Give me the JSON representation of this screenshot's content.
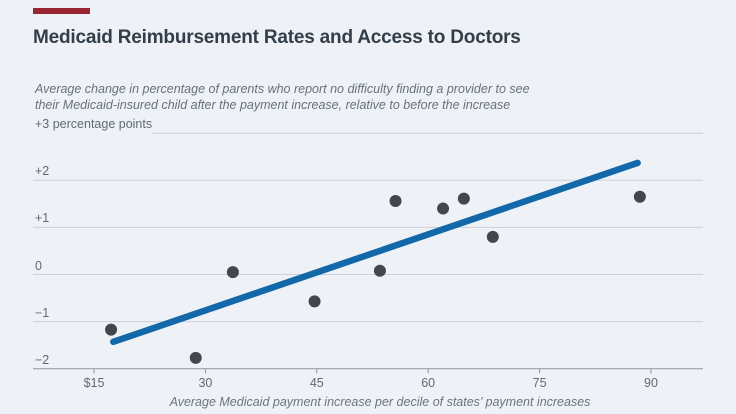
{
  "page": {
    "background_color": "#eef2f7",
    "accent_bar_color": "#9a2533"
  },
  "title": "Medicaid Reimbursement Rates and Access to Doctors",
  "subtitle": {
    "line1": "Average change in percentage of parents who report no difficulty finding a provider to see",
    "line2": "their Medicaid-insured child after the payment increase, relative to before the increase"
  },
  "chart_data": {
    "type": "scatter",
    "title": "Medicaid Reimbursement Rates and Access to Doctors",
    "xlabel": "Average Medicaid payment increase per decile of states’ payment increases",
    "ylabel": "percentage points",
    "xlim": [
      7,
      97
    ],
    "ylim": [
      -2,
      3
    ],
    "grid": true,
    "x_ticks": [
      {
        "value": 15,
        "label": "$15"
      },
      {
        "value": 30,
        "label": "30"
      },
      {
        "value": 45,
        "label": "45"
      },
      {
        "value": 60,
        "label": "60"
      },
      {
        "value": 75,
        "label": "75"
      },
      {
        "value": 90,
        "label": "90"
      }
    ],
    "y_ticks": [
      {
        "value": 3,
        "label": "+3 percentage points",
        "line_starts_after_label": true
      },
      {
        "value": 2,
        "label": "+2"
      },
      {
        "value": 1,
        "label": "+1"
      },
      {
        "value": 0,
        "label": "0"
      },
      {
        "value": -1,
        "label": "−1"
      },
      {
        "value": -2,
        "label": "−2",
        "is_axis": true
      }
    ],
    "points": [
      {
        "x": 17.3,
        "y": -1.17
      },
      {
        "x": 28.7,
        "y": -1.77
      },
      {
        "x": 33.7,
        "y": 0.05
      },
      {
        "x": 44.7,
        "y": -0.57
      },
      {
        "x": 53.5,
        "y": 0.08
      },
      {
        "x": 55.6,
        "y": 1.56
      },
      {
        "x": 62.0,
        "y": 1.4
      },
      {
        "x": 64.8,
        "y": 1.61
      },
      {
        "x": 68.7,
        "y": 0.8
      },
      {
        "x": 88.5,
        "y": 1.65
      }
    ],
    "trendline": {
      "x1": 17.6,
      "y1": -1.43,
      "x2": 88.2,
      "y2": 2.37
    },
    "colors": {
      "trendline": "#1268a9",
      "point": "#42474b",
      "gridline": "#c9d1d9",
      "axis": "#8d969e",
      "tick_label": "#5f6a72"
    }
  }
}
